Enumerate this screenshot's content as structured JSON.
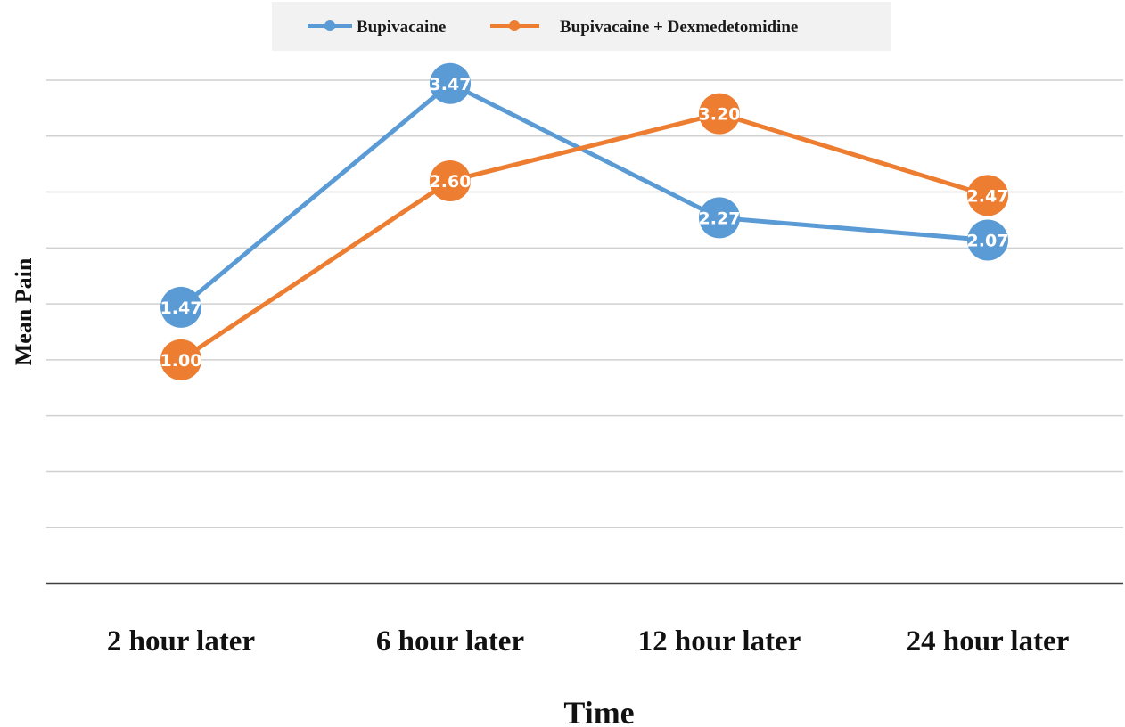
{
  "chart_data": {
    "type": "line",
    "categories": [
      "2 hour later",
      "6 hour later",
      "12 hour later",
      "24 hour later"
    ],
    "series": [
      {
        "name": "Bupivacaine",
        "values": [
          1.47,
          3.47,
          2.27,
          2.07
        ],
        "labels": [
          "1.47",
          "3.47",
          "2.27",
          "2.07"
        ],
        "color": "#5b9bd5"
      },
      {
        "name": "Bupivacaine + Dexmedetomidine",
        "values": [
          1.0,
          2.6,
          3.2,
          2.47
        ],
        "labels": [
          "1.00",
          "2.60",
          "3.20",
          "2.47"
        ],
        "color": "#ed7d31"
      }
    ],
    "xlabel": "Time",
    "ylabel": "Mean Pain",
    "ylim": [
      -1,
      3.5
    ],
    "grid": true,
    "legend": "top"
  }
}
